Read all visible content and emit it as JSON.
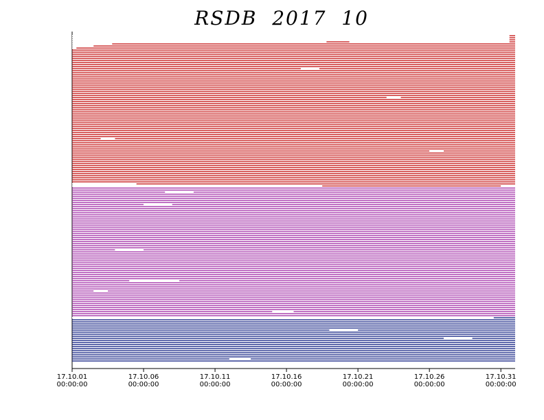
{
  "chart_data": {
    "type": "availability",
    "title": "RSDB  2017  10",
    "xlim": [
      0,
      31
    ],
    "xticks": [
      {
        "value": 0,
        "label": "17.10.01\n00:00:00"
      },
      {
        "value": 5,
        "label": "17.10.06\n00:00:00"
      },
      {
        "value": 10,
        "label": "17.10.11\n00:00:00"
      },
      {
        "value": 15,
        "label": "17.10.16\n00:00:00"
      },
      {
        "value": 20,
        "label": "17.10.21\n00:00:00"
      },
      {
        "value": 25,
        "label": "17.10.26\n00:00:00"
      },
      {
        "value": 30,
        "label": "17.10.31\n00:00:00"
      }
    ],
    "groups": [
      {
        "color": "#c00000",
        "rows": 74,
        "gaps": [
          [
            0,
            0,
            30.6
          ],
          [
            1,
            0,
            30.6
          ],
          [
            2,
            0,
            30.6
          ],
          [
            3,
            0,
            17.8
          ],
          [
            3,
            19.4,
            30.6
          ],
          [
            4,
            0,
            2.8
          ],
          [
            5,
            0,
            1.5
          ],
          [
            6,
            0,
            0.3
          ],
          [
            16,
            16,
            17.3
          ],
          [
            30,
            22,
            23
          ],
          [
            50,
            2,
            3
          ],
          [
            56,
            25,
            26
          ],
          [
            72,
            0,
            4.5
          ],
          [
            73,
            0,
            17.5
          ],
          [
            73,
            30,
            31
          ]
        ]
      },
      {
        "color": "#9b1fa0",
        "rows": 63,
        "gaps": [
          [
            2,
            6.5,
            8.5
          ],
          [
            8,
            5,
            7
          ],
          [
            30,
            3,
            5
          ],
          [
            45,
            4,
            7.5
          ],
          [
            50,
            1.5,
            2.5
          ],
          [
            60,
            14,
            15.5
          ]
        ]
      },
      {
        "color": "#00107a",
        "rows": 22,
        "gaps": [
          [
            0,
            0,
            29.5
          ],
          [
            6,
            18,
            20
          ],
          [
            10,
            26,
            28
          ],
          [
            20,
            11,
            12.5
          ]
        ]
      }
    ]
  }
}
